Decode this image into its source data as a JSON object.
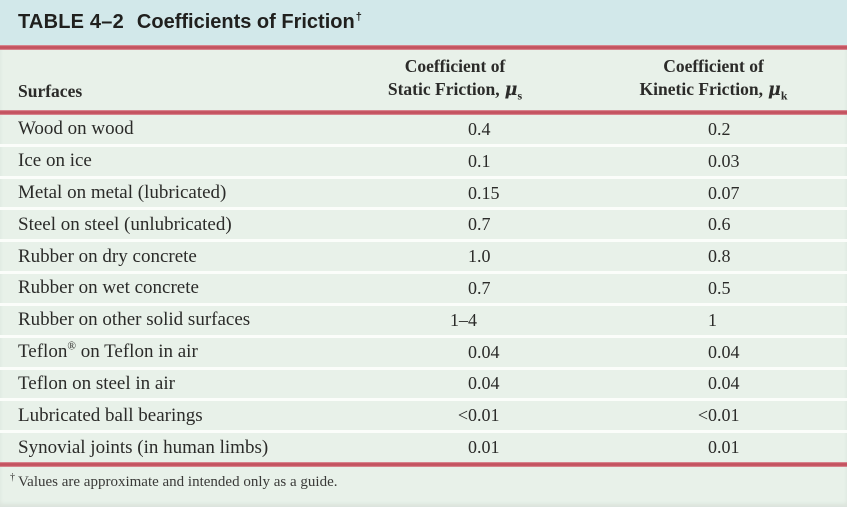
{
  "title": {
    "table_number": "TABLE 4–2",
    "table_title": "Coefficients of Friction",
    "dagger": "†"
  },
  "header": {
    "surfaces": "Surfaces",
    "static": {
      "line1": "Coefficient of",
      "line2": "Static Friction,",
      "symbol": "μ",
      "subscript": "s"
    },
    "kinetic": {
      "line1": "Coefficient of",
      "line2": "Kinetic Friction,",
      "symbol": "μ",
      "subscript": "k"
    }
  },
  "rows": [
    {
      "surface": "Wood on wood",
      "static": "0.4",
      "kinetic": "0.2"
    },
    {
      "surface": "Ice on ice",
      "static": "0.1",
      "kinetic": "0.03"
    },
    {
      "surface": "Metal on metal (lubricated)",
      "static": "0.15",
      "kinetic": "0.07"
    },
    {
      "surface": "Steel on steel (unlubricated)",
      "static": "0.7",
      "kinetic": "0.6"
    },
    {
      "surface": "Rubber on dry concrete",
      "static": "1.0",
      "kinetic": "0.8"
    },
    {
      "surface": "Rubber on wet concrete",
      "static": "0.7",
      "kinetic": "0.5"
    },
    {
      "surface": "Rubber on other solid surfaces",
      "static": "1–4",
      "kinetic": "1"
    },
    {
      "surface": "Teflon® on Teflon in air",
      "static": "0.04",
      "kinetic": "0.04"
    },
    {
      "surface": "Teflon on steel in air",
      "static": "0.04",
      "kinetic": "0.04"
    },
    {
      "surface": "Lubricated ball bearings",
      "static": "<0.01",
      "kinetic": "<0.01"
    },
    {
      "surface": "Synovial joints (in human limbs)",
      "static": "0.01",
      "kinetic": "0.01"
    }
  ],
  "footnote": {
    "marker": "†",
    "text": "Values are approximate and intended only as a guide."
  },
  "colors": {
    "title_bar": "#d2e8ea",
    "body_bg": "#e8f1e9",
    "rule": "#c4525f",
    "rule_edge": "#e09aa3",
    "text": "#2b2b29"
  }
}
